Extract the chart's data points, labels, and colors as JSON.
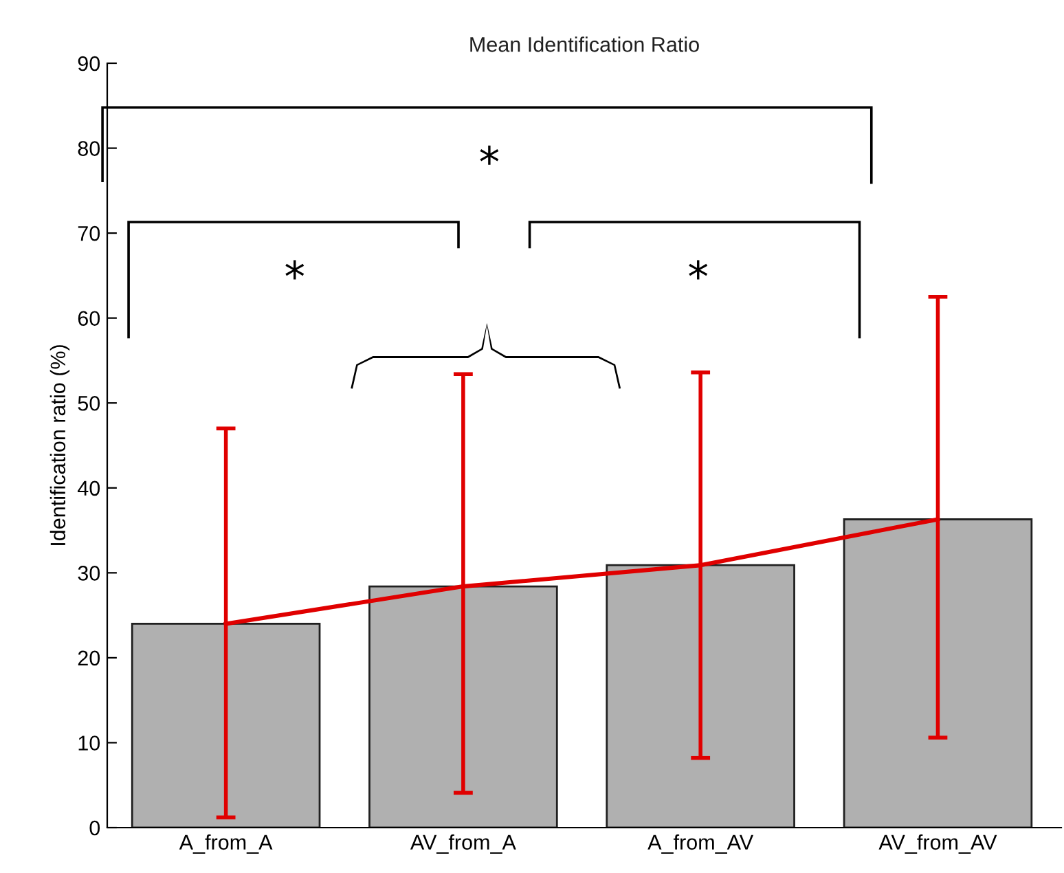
{
  "chart_data": {
    "type": "bar",
    "title": "Mean Identification Ratio",
    "ylabel": "Identification ratio (%)",
    "categories": [
      "A_from_A",
      "AV_from_A",
      "A_from_AV",
      "AV_from_AV"
    ],
    "ylim": [
      0,
      90
    ],
    "yticks": [
      0,
      10,
      20,
      30,
      40,
      50,
      60,
      70,
      80,
      90
    ],
    "grid": false,
    "legend": false,
    "series": [
      {
        "color": "#b0b0b0",
        "values": [
          24.0,
          28.4,
          30.9,
          36.3
        ],
        "errors": [
          [
            1.2,
            47.0
          ],
          [
            4.1,
            53.4
          ],
          [
            8.2,
            53.6
          ],
          [
            10.6,
            62.5
          ]
        ]
      },
      {
        "type": "line",
        "color": "#e00000",
        "values": [
          24.0,
          28.4,
          30.9,
          36.3
        ],
        "marker": "none",
        "line_style": "solid"
      }
    ],
    "annotations": [
      "*",
      "*",
      "*"
    ]
  }
}
